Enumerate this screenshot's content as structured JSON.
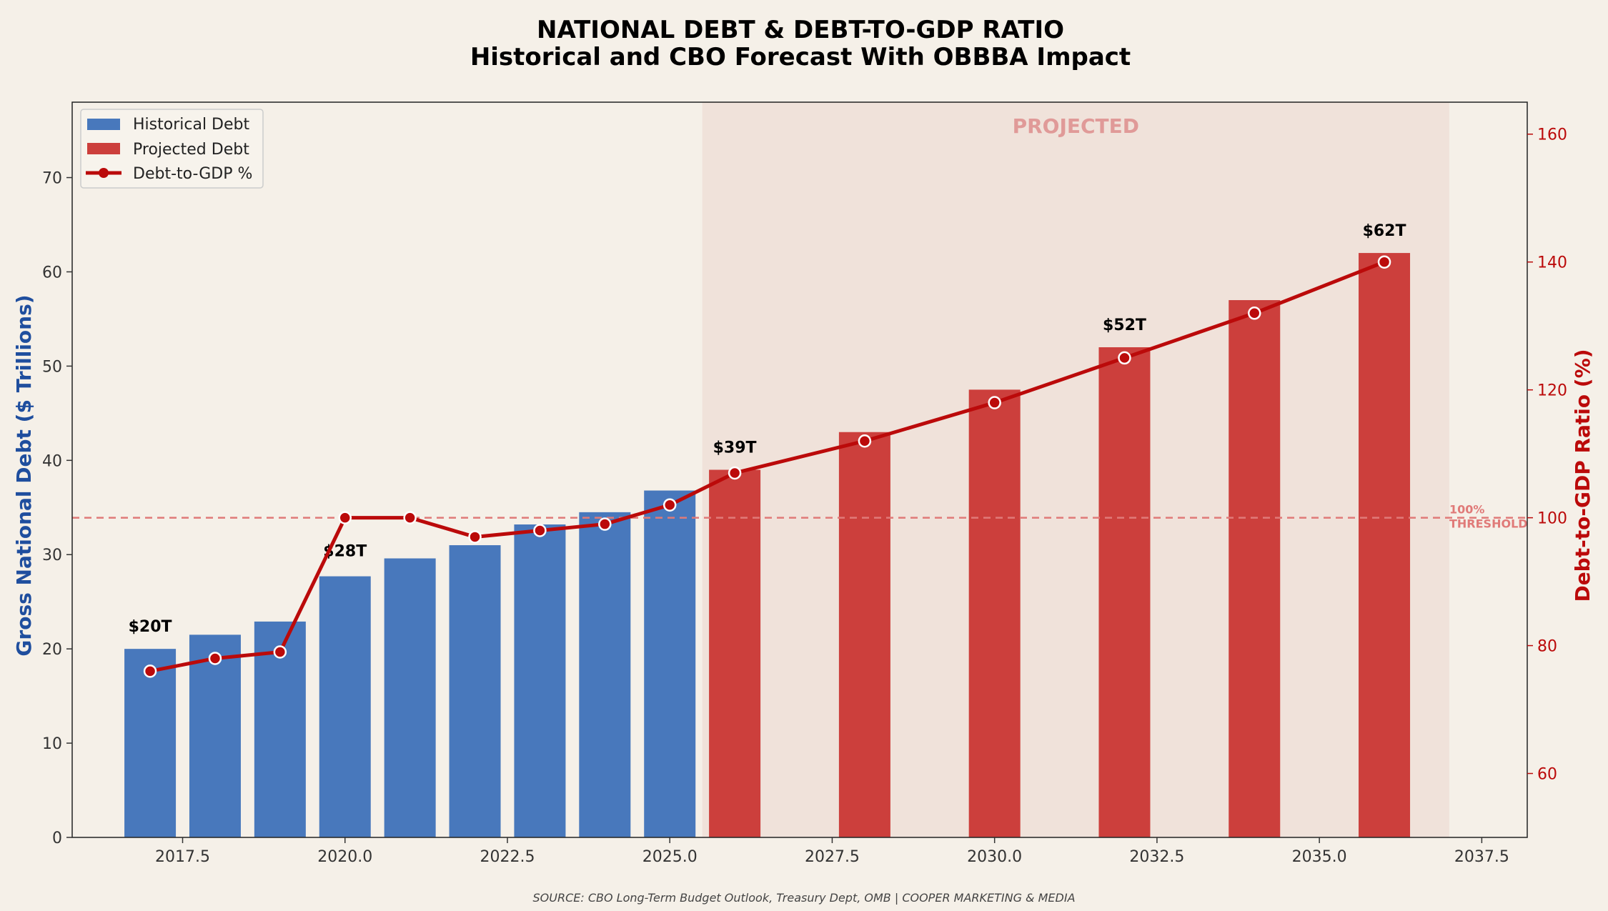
{
  "colors": {
    "background": "#f5f0e8",
    "historical": "#4878bc",
    "projected": "#cc3f3c",
    "line": "#bb0a0a",
    "left_axis": "#1f4e9e",
    "right_axis": "#bb0a0a",
    "projected_band": "#f0e2da",
    "projected_text": "#e09a98",
    "threshold": "#e07a78"
  },
  "chart_data": {
    "type": "bar",
    "title": "NATIONAL DEBT & DEBT-TO-GDP RATIO",
    "subtitle": "Historical and CBO Forecast With OBBBA Impact",
    "ylabel": "Gross National Debt ($ Trillions)",
    "y2label": "Debt-to-GDP Ratio (%)",
    "xlim": [
      2015.8,
      2038.2
    ],
    "ylim": [
      0,
      78
    ],
    "y2lim": [
      50,
      165
    ],
    "x_ticks": [
      "2017.5",
      "2020.0",
      "2022.5",
      "2025.0",
      "2027.5",
      "2030.0",
      "2032.5",
      "2035.0",
      "2037.5"
    ],
    "y_ticks": [
      "0",
      "10",
      "20",
      "30",
      "40",
      "50",
      "60",
      "70"
    ],
    "y2_ticks": [
      "60",
      "80",
      "100",
      "120",
      "140",
      "160"
    ],
    "grid": false,
    "legend_position": "top-left",
    "series": [
      {
        "name": "Historical Debt",
        "kind": "bar",
        "x": [
          2017,
          2018,
          2019,
          2020,
          2021,
          2022,
          2023,
          2024,
          2025
        ],
        "values": [
          20.0,
          21.5,
          22.9,
          27.7,
          29.6,
          31.0,
          33.2,
          34.5,
          36.8
        ]
      },
      {
        "name": "Projected Debt",
        "kind": "bar",
        "x": [
          2026,
          2028,
          2030,
          2032,
          2034,
          2036
        ],
        "values": [
          39.0,
          43.0,
          47.5,
          52.0,
          57.0,
          62.0
        ]
      },
      {
        "name": "Debt-to-GDP %",
        "kind": "line",
        "axis": "right",
        "x": [
          2017,
          2018,
          2019,
          2020,
          2021,
          2022,
          2023,
          2024,
          2025,
          2026,
          2028,
          2030,
          2032,
          2034,
          2036
        ],
        "values": [
          76,
          78,
          79,
          100,
          100,
          97,
          98,
          99,
          102,
          107,
          112,
          118,
          125,
          132,
          140
        ]
      }
    ],
    "data_labels": [
      {
        "x": 2017,
        "value": 20,
        "text": "$20T"
      },
      {
        "x": 2020,
        "value": 28,
        "text": "$28T"
      },
      {
        "x": 2026,
        "value": 39,
        "text": "$39T"
      },
      {
        "x": 2032,
        "value": 52,
        "text": "$52T"
      },
      {
        "x": 2036,
        "value": 62,
        "text": "$62T"
      }
    ],
    "projected_region": {
      "from": 2025.5,
      "to": 2037.0,
      "label": "PROJECTED"
    },
    "threshold": {
      "value": 100,
      "axis": "right",
      "label_line1": "100%",
      "label_line2": "THRESHOLD"
    }
  },
  "source_note": "SOURCE: CBO Long-Term Budget Outlook, Treasury Dept, OMB  |  COOPER MARKETING & MEDIA"
}
